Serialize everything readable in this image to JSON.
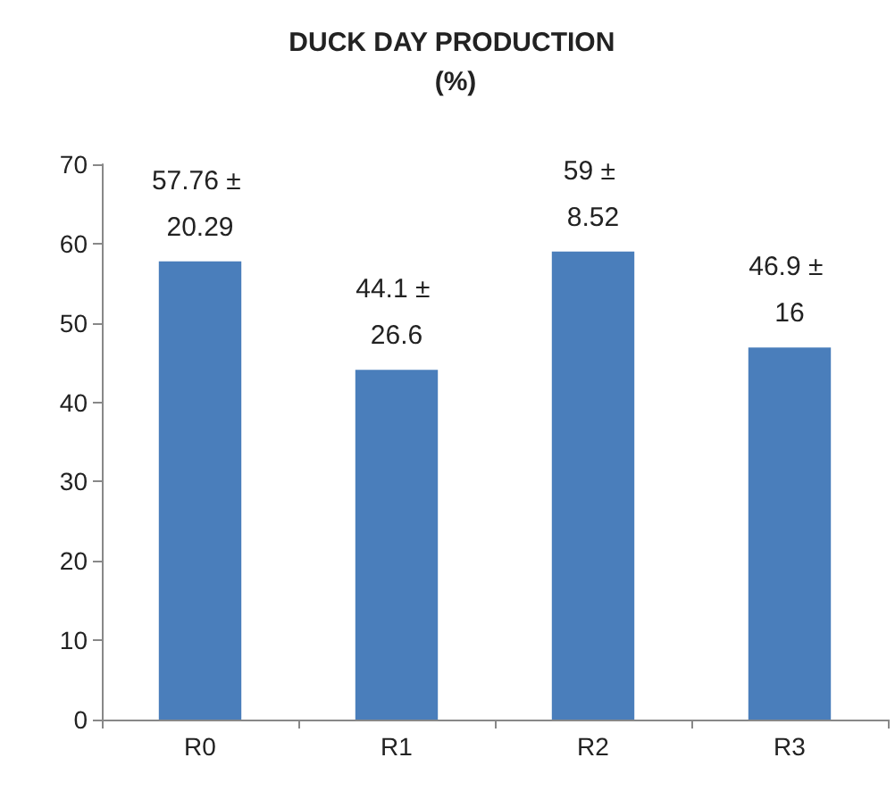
{
  "chart_data": {
    "type": "bar",
    "title": "DUCK DAY PRODUCTION (%)",
    "categories": [
      "R0",
      "R1",
      "R2",
      "R3"
    ],
    "values": [
      57.76,
      44.1,
      59,
      46.9
    ],
    "value_labels": [
      "57.76 ± 20.29",
      "44.1 ± 26.6",
      "59 ± 8.52",
      "46.9 ± 16"
    ],
    "color": "#4a7ebb",
    "ylim": [
      0,
      70
    ],
    "yticks": [
      0,
      10,
      20,
      30,
      40,
      50,
      60,
      70
    ],
    "grid": false
  }
}
